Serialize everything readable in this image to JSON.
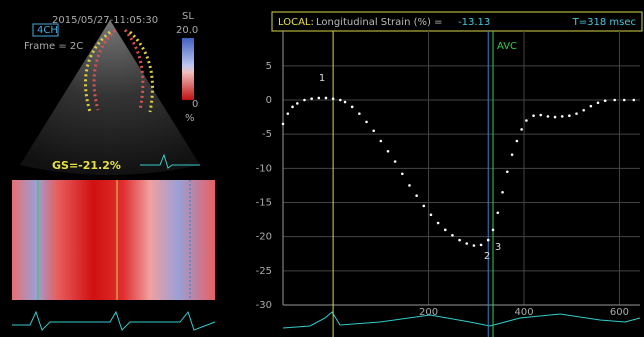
{
  "echo_panel": {
    "timestamp": "2015/05/27-11:05:30",
    "view": "4CH",
    "frame": "Frame = 2C",
    "scale_name": "SL",
    "scale_max": "20.0",
    "scale_zero": "0",
    "scale_unit": "%",
    "global_strain": "GS=-21.2%"
  },
  "header": {
    "mode": "LOCAL:",
    "label": "Longitudinal Strain (%) =",
    "current_value": -13.13,
    "time": "T=318 msec"
  },
  "chart_data": {
    "type": "scatter",
    "color": "#ffffff",
    "x": [
      -105,
      -95,
      -85,
      -75,
      -60,
      -45,
      -30,
      -15,
      0,
      15,
      25,
      40,
      55,
      70,
      85,
      100,
      115,
      130,
      145,
      160,
      175,
      190,
      205,
      220,
      235,
      250,
      265,
      280,
      295,
      310,
      325,
      335,
      345,
      355,
      365,
      375,
      385,
      395,
      405,
      420,
      435,
      450,
      465,
      480,
      495,
      510,
      525,
      540,
      555,
      570,
      590,
      610,
      630
    ],
    "values": [
      -3.5,
      -2,
      -1,
      -0.5,
      0,
      0.2,
      0.3,
      0.3,
      0.2,
      0,
      -0.3,
      -1,
      -2,
      -3.2,
      -4.5,
      -6,
      -7.5,
      -9,
      -10.8,
      -12.5,
      -14,
      -15.5,
      -16.8,
      -18,
      -19,
      -19.8,
      -20.5,
      -21,
      -21.3,
      -21.2,
      -20.5,
      -19,
      -16.5,
      -13.5,
      -10.5,
      -8,
      -6,
      -4.3,
      -3,
      -2.3,
      -2.2,
      -2.4,
      -2.5,
      -2.4,
      -2.3,
      -2,
      -1.5,
      -0.9,
      -0.4,
      -0.1,
      0,
      0,
      0
    ],
    "xlim": [
      -105,
      643
    ],
    "ylim": [
      -30,
      10.1
    ],
    "xticks": [
      200,
      400,
      600
    ],
    "yticks": [
      5,
      0,
      -5,
      -10,
      -15,
      -20,
      -25,
      -30
    ],
    "grid": true,
    "vlines": [
      {
        "x": 0,
        "color": "#d6d64a"
      },
      {
        "x": 325,
        "color": "#3a7fd0"
      },
      {
        "x": 335,
        "color": "#2fcf4f",
        "label": "AVC"
      }
    ],
    "annotations": [
      "1",
      "2",
      "3"
    ]
  }
}
